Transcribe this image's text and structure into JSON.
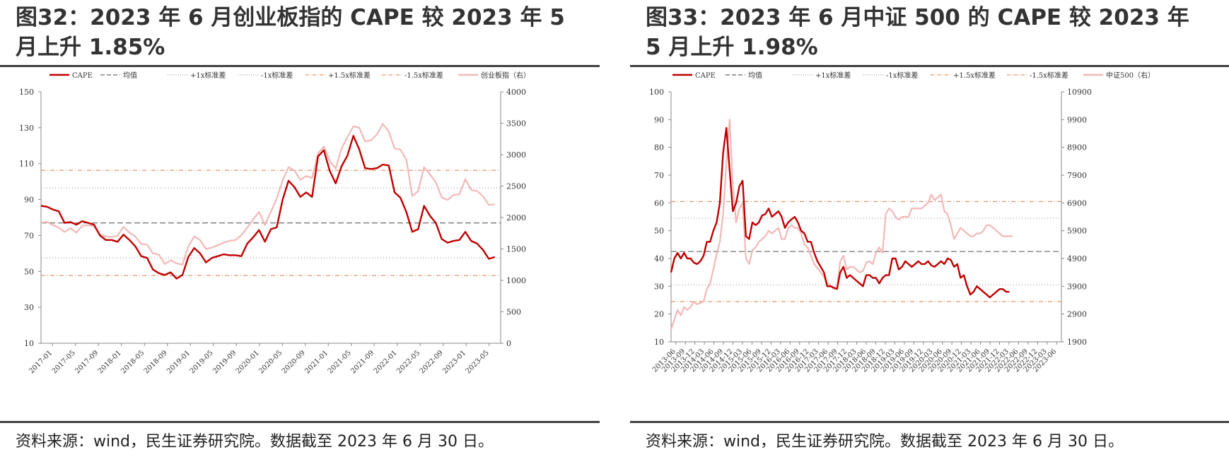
{
  "panels": [
    {
      "title": "图32：2023 年 6 月创业板指的 CAPE 较 2023 年 5 月上升 1.85%",
      "source": "资料来源：wind，民生证券研究院。数据截至 2023 年 6 月 30 日。",
      "chart_data": {
        "type": "line",
        "legend": [
          "CAPE",
          "均值",
          "+1x标准差",
          "-1x标准差",
          "+1.5x标准差",
          "-1.5x标准差",
          "创业板指（右）"
        ],
        "legend_position": "top",
        "x_tick_labels": [
          "2017-01",
          "2017-05",
          "2017-09",
          "2018-01",
          "2018-05",
          "2018-09",
          "2019-01",
          "2019-05",
          "2019-09",
          "2020-01",
          "2020-05",
          "2020-09",
          "2021-01",
          "2021-05",
          "2021-09",
          "2022-01",
          "2022-05",
          "2022-09",
          "2023-01",
          "2023-05"
        ],
        "y_left": {
          "ticks": [
            10,
            30,
            50,
            70,
            90,
            110,
            130,
            150
          ],
          "range": [
            10,
            150
          ]
        },
        "y_right": {
          "ticks": [
            0,
            500,
            1000,
            1500,
            2000,
            2500,
            3000,
            3500,
            4000
          ],
          "range": [
            0,
            4000
          ]
        },
        "x_range": [
          0,
          78
        ],
        "reference_lines": {
          "mean": 77,
          "plus_1sd": 96.5,
          "minus_1sd": 57.5,
          "plus_1_5sd": 106.3,
          "minus_1_5sd": 47.7
        },
        "series": [
          {
            "name": "CAPE",
            "axis": "left",
            "color": "#c00000",
            "values": [
              86.5,
              86,
              84.5,
              83.5,
              77,
              77.5,
              76,
              78,
              77,
              76,
              70,
              67.5,
              67.5,
              66.5,
              70.5,
              67.5,
              64,
              58.5,
              57.5,
              51,
              49,
              48,
              49.5,
              46,
              48,
              58,
              63,
              60,
              55,
              57.5,
              58.5,
              59.5,
              59,
              59,
              58.5,
              65.5,
              69,
              73,
              66.5,
              73.5,
              74.5,
              90,
              100.5,
              97,
              91.5,
              94,
              91.5,
              114,
              117.5,
              106,
              99,
              108.5,
              114.5,
              125.5,
              118,
              107.5,
              107,
              107.5,
              109.5,
              109,
              94,
              91,
              83,
              72,
              73.5,
              86.5,
              81,
              77,
              68,
              66,
              67,
              67.5,
              72,
              67,
              65.5,
              62,
              57,
              58
            ]
          },
          {
            "name": "创业板指（右）",
            "axis": "right",
            "color": "#f2b8b8",
            "values": [
              1920,
              1930,
              1880,
              1840,
              1770,
              1830,
              1760,
              1870,
              1880,
              1860,
              1730,
              1700,
              1690,
              1710,
              1850,
              1760,
              1700,
              1580,
              1570,
              1430,
              1410,
              1260,
              1320,
              1270,
              1250,
              1540,
              1700,
              1640,
              1500,
              1520,
              1560,
              1600,
              1630,
              1640,
              1720,
              1840,
              1970,
              2090,
              1880,
              2090,
              2300,
              2590,
              2800,
              2750,
              2600,
              2660,
              2630,
              3020,
              3130,
              2900,
              2780,
              3100,
              3280,
              3450,
              3430,
              3210,
              3230,
              3320,
              3490,
              3370,
              3100,
              3080,
              2920,
              2340,
              2420,
              2800,
              2690,
              2560,
              2320,
              2280,
              2360,
              2370,
              2610,
              2440,
              2420,
              2340,
              2200,
              2210
            ]
          }
        ]
      }
    },
    {
      "title": "图33：2023 年 6 月中证 500 的 CAPE 较 2023 年 5 月上升 1.98%",
      "source": "资料来源：wind，民生证券研究院。数据截至 2023 年 6 月 30 日。",
      "chart_data": {
        "type": "line",
        "legend": [
          "CAPE",
          "均值",
          "+1x标准差",
          "-1x标准差",
          "+1.5x标准差",
          "-1.5x标准差",
          "中证500（右）"
        ],
        "legend_position": "top",
        "x_tick_labels": [
          "2013-06",
          "2013-09",
          "2013-12",
          "2014-03",
          "2014-06",
          "2014-09",
          "2014-12",
          "2015-03",
          "2015-06",
          "2015-09",
          "2015-12",
          "2016-03",
          "2016-06",
          "2016-09",
          "2016-12",
          "2017-03",
          "2017-06",
          "2017-09",
          "2017-12",
          "2018-03",
          "2018-06",
          "2018-09",
          "2018-12",
          "2019-03",
          "2019-06",
          "2019-09",
          "2019-12",
          "2020-03",
          "2020-06",
          "2020-09",
          "2020-12",
          "2021-03",
          "2021-06",
          "2021-09",
          "2021-12",
          "2022-03",
          "2022-06",
          "2022-09",
          "2022-12",
          "2023-03",
          "2023-06"
        ],
        "y_left": {
          "ticks": [
            10,
            20,
            30,
            40,
            50,
            60,
            70,
            80,
            90,
            100
          ],
          "range": [
            10,
            100
          ]
        },
        "y_right": {
          "ticks": [
            1900,
            2900,
            3900,
            4900,
            5900,
            6900,
            7900,
            8900,
            9900,
            10900
          ],
          "range": [
            1900,
            10900
          ]
        },
        "x_range": [
          0,
          120
        ],
        "reference_lines": {
          "mean": 42.5,
          "plus_1sd": 54.5,
          "minus_1sd": 30.5,
          "plus_1_5sd": 60.5,
          "minus_1_5sd": 24.5
        },
        "series": [
          {
            "name": "CAPE",
            "axis": "left",
            "color": "#c00000",
            "values": [
              35,
              40,
              42,
              40,
              42,
              40,
              40,
              38.5,
              38,
              39,
              41,
              46,
              46,
              50,
              53,
              60,
              78,
              87,
              72,
              57,
              60,
              66,
              68,
              48,
              47,
              53,
              52,
              53,
              55.5,
              56,
              58,
              55,
              56,
              57,
              55,
              51,
              53,
              54,
              55,
              53,
              50,
              49,
              46,
              46,
              42,
              39,
              37,
              35,
              30,
              30,
              29.5,
              29,
              35,
              37,
              33,
              34,
              33,
              32,
              31,
              30,
              34,
              34,
              33,
              33,
              31,
              33,
              34,
              34,
              40,
              40,
              36,
              37,
              39,
              38,
              37,
              38,
              39,
              38,
              38,
              39,
              37.5,
              37,
              38,
              39,
              38,
              40,
              39.5,
              37,
              38,
              33,
              34,
              30,
              27,
              28,
              30,
              29,
              28,
              27,
              26,
              27,
              28,
              29,
              29,
              28,
              28
            ]
          },
          {
            "name": "中证500（右）",
            "axis": "right",
            "color": "#f2b8b8",
            "values": [
              2350,
              2700,
              3050,
              2850,
              3150,
              3050,
              3150,
              3350,
              3250,
              3300,
              3350,
              3800,
              4000,
              4500,
              5050,
              5500,
              6500,
              8300,
              9900,
              7500,
              6200,
              6700,
              6900,
              4900,
              4700,
              5200,
              5300,
              5500,
              5600,
              5700,
              5900,
              5800,
              5900,
              6000,
              5600,
              5600,
              6000,
              6100,
              6000,
              6000,
              5800,
              5400,
              5300,
              5000,
              4700,
              4550,
              4400,
              4250,
              4000,
              3950,
              3800,
              3850,
              4800,
              5000,
              4500,
              4600,
              4600,
              4500,
              4400,
              4450,
              4750,
              4800,
              4700,
              5100,
              5300,
              5100,
              6500,
              6700,
              6600,
              6400,
              6300,
              6400,
              6400,
              6400,
              6700,
              6700,
              6700,
              6700,
              6800,
              6900,
              7200,
              7000,
              7100,
              7200,
              6600,
              6500,
              6100,
              5600,
              5800,
              6000,
              5900,
              5800,
              5700,
              5700,
              5800,
              5800,
              5900,
              6100,
              6100,
              6000,
              5900,
              5800,
              5700,
              5700,
              5700,
              5700
            ]
          }
        ]
      }
    }
  ]
}
